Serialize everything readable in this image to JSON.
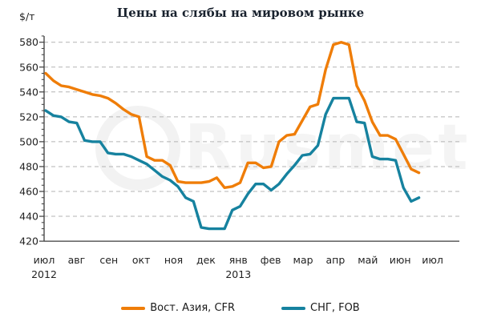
{
  "chart_data": {
    "type": "line",
    "title": "Цены на слябы на мировом рынке",
    "ylabel": "$/т",
    "ylim": [
      420,
      580
    ],
    "ytick_step": 20,
    "ytick_minor_step": 5,
    "grid": true,
    "legend_position": "bottom",
    "x_months": [
      "июл",
      "авг",
      "сен",
      "окт",
      "ноя",
      "дек",
      "янв",
      "фев",
      "мар",
      "апр",
      "май",
      "июн",
      "июл"
    ],
    "x_years": [
      {
        "label": "2012",
        "month_index": 0
      },
      {
        "label": "2013",
        "month_index": 6
      }
    ],
    "x_note": "weekly data from июл 2012 to mid-июн 2013",
    "watermark": "Rusmet",
    "series": [
      {
        "name": "Вост. Азия, CFR",
        "color": "#ef7d08",
        "values": [
          555,
          549,
          545,
          544,
          542,
          540,
          538,
          537,
          535,
          531,
          526,
          522,
          520,
          488,
          485,
          485,
          481,
          468,
          467,
          467,
          467,
          468,
          471,
          463,
          464,
          467,
          483,
          483,
          479,
          480,
          500,
          505,
          506,
          517,
          528,
          530,
          558,
          578,
          580,
          578,
          545,
          533,
          516,
          505,
          505,
          502,
          490,
          478,
          475
        ]
      },
      {
        "name": "СНГ, FOB",
        "color": "#16829f",
        "values": [
          525,
          521,
          520,
          516,
          515,
          501,
          500,
          500,
          491,
          490,
          490,
          488,
          485,
          482,
          477,
          472,
          469,
          464,
          455,
          452,
          431,
          430,
          430,
          430,
          445,
          448,
          458,
          466,
          466,
          461,
          466,
          474,
          481,
          489,
          490,
          497,
          522,
          535,
          535,
          535,
          516,
          515,
          488,
          486,
          486,
          485,
          463,
          452,
          455
        ]
      }
    ]
  }
}
